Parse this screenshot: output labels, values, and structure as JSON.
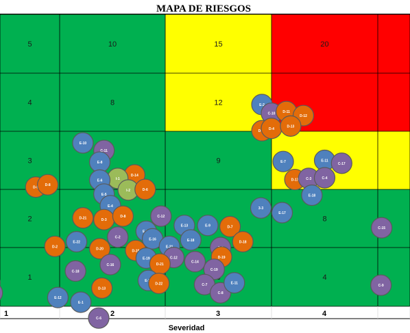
{
  "chart_data": {
    "type": "risk-matrix",
    "title": "MAPA DE RIESGOS",
    "xlabel": "Severidad",
    "ylabel": "",
    "x_ticks": [
      "1",
      "2",
      "3",
      "4",
      ""
    ],
    "colors": {
      "low": "#00b050",
      "medium": "#ffff00",
      "high": "#ff0000",
      "E": "#4f81bd",
      "D": "#e36c09",
      "C": "#8064a2",
      "I": "#9bbb59",
      "grid": "#000000"
    },
    "cells": [
      {
        "row": 5,
        "col": 1,
        "label": "5",
        "level": "low"
      },
      {
        "row": 5,
        "col": 2,
        "label": "10",
        "level": "low"
      },
      {
        "row": 5,
        "col": 3,
        "label": "15",
        "level": "medium"
      },
      {
        "row": 5,
        "col": 4,
        "label": "20",
        "level": "high"
      },
      {
        "row": 5,
        "col": 5,
        "label": "",
        "level": "high"
      },
      {
        "row": 4,
        "col": 1,
        "label": "4",
        "level": "low"
      },
      {
        "row": 4,
        "col": 2,
        "label": "8",
        "level": "low"
      },
      {
        "row": 4,
        "col": 3,
        "label": "12",
        "level": "medium"
      },
      {
        "row": 4,
        "col": 4,
        "label": "",
        "level": "high"
      },
      {
        "row": 4,
        "col": 5,
        "label": "",
        "level": "high"
      },
      {
        "row": 3,
        "col": 1,
        "label": "3",
        "level": "low"
      },
      {
        "row": 3,
        "col": 2,
        "label": "",
        "level": "low"
      },
      {
        "row": 3,
        "col": 3,
        "label": "9",
        "level": "low"
      },
      {
        "row": 3,
        "col": 4,
        "label": "",
        "level": "medium"
      },
      {
        "row": 3,
        "col": 5,
        "label": "",
        "level": "medium"
      },
      {
        "row": 2,
        "col": 1,
        "label": "2",
        "level": "low"
      },
      {
        "row": 2,
        "col": 2,
        "label": "",
        "level": "low"
      },
      {
        "row": 2,
        "col": 3,
        "label": "",
        "level": "low"
      },
      {
        "row": 2,
        "col": 4,
        "label": "8",
        "level": "low"
      },
      {
        "row": 2,
        "col": 5,
        "label": "",
        "level": "low"
      },
      {
        "row": 1,
        "col": 1,
        "label": "1",
        "level": "low"
      },
      {
        "row": 1,
        "col": 2,
        "label": "",
        "level": "low"
      },
      {
        "row": 1,
        "col": 3,
        "label": "3",
        "level": "low"
      },
      {
        "row": 1,
        "col": 4,
        "label": "4",
        "level": "low"
      },
      {
        "row": 1,
        "col": 5,
        "label": "",
        "level": "low"
      }
    ],
    "points": [
      {
        "label": "E-2",
        "type": "E",
        "x": 3.91,
        "y": 4.46
      },
      {
        "label": "D-14",
        "type": "D",
        "x": 3.91,
        "y": 4.01
      },
      {
        "label": "C-10",
        "type": "C",
        "x": 4.0,
        "y": 4.31
      },
      {
        "label": "D-11",
        "type": "D",
        "x": 4.14,
        "y": 4.34
      },
      {
        "label": "D-12",
        "type": "D",
        "x": 4.3,
        "y": 4.27
      },
      {
        "label": "D-4",
        "type": "D",
        "x": 4.0,
        "y": 4.05
      },
      {
        "label": "D-13",
        "type": "D",
        "x": 4.18,
        "y": 4.09
      },
      {
        "label": "E-10",
        "type": "E",
        "x": 2.22,
        "y": 3.8
      },
      {
        "label": "C-11",
        "type": "C",
        "x": 2.42,
        "y": 3.67
      },
      {
        "label": "E-8",
        "type": "E",
        "x": 2.38,
        "y": 3.47
      },
      {
        "label": "D-14",
        "type": "D",
        "x": 2.71,
        "y": 3.25
      },
      {
        "label": "I-1",
        "type": "I",
        "x": 2.55,
        "y": 3.19
      },
      {
        "label": "E-6",
        "type": "E",
        "x": 2.38,
        "y": 3.16
      },
      {
        "label": "D-9",
        "type": "D",
        "x": 1.6,
        "y": 3.04
      },
      {
        "label": "D-8",
        "type": "D",
        "x": 1.8,
        "y": 3.08
      },
      {
        "label": "I-2",
        "type": "I",
        "x": 2.65,
        "y": 2.99
      },
      {
        "label": "D-6",
        "type": "D",
        "x": 2.81,
        "y": 3.0
      },
      {
        "label": "E-5",
        "type": "E",
        "x": 2.42,
        "y": 2.92
      },
      {
        "label": "E-7",
        "type": "E",
        "x": 4.11,
        "y": 3.48
      },
      {
        "label": "E-11",
        "type": "E",
        "x": 4.5,
        "y": 3.5
      },
      {
        "label": "C-17",
        "type": "C",
        "x": 4.66,
        "y": 3.45
      },
      {
        "label": "D-17",
        "type": "D",
        "x": 4.22,
        "y": 3.17
      },
      {
        "label": "C-3",
        "type": "C",
        "x": 4.35,
        "y": 3.19
      },
      {
        "label": "C-4",
        "type": "C",
        "x": 4.5,
        "y": 3.2
      },
      {
        "label": "E-18",
        "type": "E",
        "x": 4.38,
        "y": 2.9
      },
      {
        "label": "E-4",
        "type": "E",
        "x": 2.48,
        "y": 2.72
      },
      {
        "label": "3-3",
        "type": "E",
        "x": 3.9,
        "y": 2.68
      },
      {
        "label": "E-17",
        "type": "E",
        "x": 4.1,
        "y": 2.6
      },
      {
        "label": "C-15",
        "type": "C",
        "x": 5.12,
        "y": 2.34
      },
      {
        "label": "D-21",
        "type": "D",
        "x": 2.22,
        "y": 2.51
      },
      {
        "label": "D-3",
        "type": "D",
        "x": 2.42,
        "y": 2.48
      },
      {
        "label": "D-8",
        "type": "D",
        "x": 2.6,
        "y": 2.54
      },
      {
        "label": "C-12",
        "type": "C",
        "x": 2.96,
        "y": 2.54
      },
      {
        "label": "E-13",
        "type": "E",
        "x": 3.18,
        "y": 2.38
      },
      {
        "label": "E-9",
        "type": "E",
        "x": 3.4,
        "y": 2.38
      },
      {
        "label": "D-7",
        "type": "D",
        "x": 3.61,
        "y": 2.36
      },
      {
        "label": "E-20",
        "type": "E",
        "x": 2.82,
        "y": 2.28
      },
      {
        "label": "D-2",
        "type": "D",
        "x": 1.92,
        "y": 2.02
      },
      {
        "label": "E-22",
        "type": "E",
        "x": 2.16,
        "y": 2.1
      },
      {
        "label": "C-2",
        "type": "C",
        "x": 2.55,
        "y": 2.18
      },
      {
        "label": "E-16",
        "type": "E",
        "x": 2.88,
        "y": 2.15
      },
      {
        "label": "E-18",
        "type": "E",
        "x": 3.24,
        "y": 2.13
      },
      {
        "label": "E-21",
        "type": "E",
        "x": 3.04,
        "y": 2.02
      },
      {
        "label": "C-5",
        "type": "C",
        "x": 3.52,
        "y": 2.0
      },
      {
        "label": "D-18",
        "type": "D",
        "x": 3.73,
        "y": 2.1
      },
      {
        "label": "D-20",
        "type": "D",
        "x": 2.38,
        "y": 1.98
      },
      {
        "label": "D-19",
        "type": "D",
        "x": 2.72,
        "y": 1.95
      },
      {
        "label": "E-19",
        "type": "E",
        "x": 2.82,
        "y": 1.82
      },
      {
        "label": "C-12",
        "type": "C",
        "x": 3.08,
        "y": 1.83
      },
      {
        "label": "D-21",
        "type": "D",
        "x": 2.95,
        "y": 1.72
      },
      {
        "label": "C-14",
        "type": "C",
        "x": 3.28,
        "y": 1.76
      },
      {
        "label": "D-19",
        "type": "D",
        "x": 3.53,
        "y": 1.84
      },
      {
        "label": "C-16",
        "type": "C",
        "x": 2.48,
        "y": 1.71
      },
      {
        "label": "C-18",
        "type": "C",
        "x": 2.15,
        "y": 1.6
      },
      {
        "label": "E-23",
        "type": "E",
        "x": 2.84,
        "y": 1.44
      },
      {
        "label": "D-22",
        "type": "D",
        "x": 2.94,
        "y": 1.39
      },
      {
        "label": "C-19",
        "type": "C",
        "x": 3.46,
        "y": 1.63
      },
      {
        "label": "C-7",
        "type": "C",
        "x": 3.37,
        "y": 1.37
      },
      {
        "label": "C-8",
        "type": "C",
        "x": 3.52,
        "y": 1.23
      },
      {
        "label": "E-11",
        "type": "E",
        "x": 3.65,
        "y": 1.4
      },
      {
        "label": "D-13",
        "type": "D",
        "x": 2.4,
        "y": 1.31
      },
      {
        "label": "E-12",
        "type": "E",
        "x": 1.97,
        "y": 1.15
      },
      {
        "label": "E-1",
        "type": "E",
        "x": 2.2,
        "y": 1.07
      },
      {
        "label": "C-6",
        "type": "C",
        "x": 2.37,
        "y": 0.8
      },
      {
        "label": "D-1",
        "type": "D",
        "x": 0.83,
        "y": 1.4
      },
      {
        "label": "C-1",
        "type": "C",
        "x": 0.87,
        "y": 1.23
      },
      {
        "label": "C-9",
        "type": "C",
        "x": 5.1,
        "y": 1.36
      }
    ]
  }
}
